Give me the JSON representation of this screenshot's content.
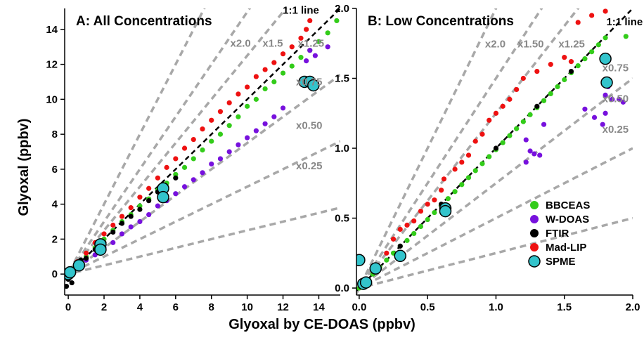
{
  "shared": {
    "ylabel": "Glyoxal (ppbv)",
    "xlabel": "Glyoxal by CE-DOAS (ppbv)"
  },
  "legend": {
    "entries": [
      {
        "name": "BBCEAS",
        "color": "#33cc1a",
        "marker": "dot"
      },
      {
        "name": "W-DOAS",
        "color": "#7711dd",
        "marker": "dot"
      },
      {
        "name": "FTIR",
        "color": "#000000",
        "marker": "dot"
      },
      {
        "name": "Mad-LIP",
        "color": "#ee1111",
        "marker": "dot"
      },
      {
        "name": "SPME",
        "color": "#33c4cc",
        "marker": "circle"
      }
    ]
  },
  "chart_data": [
    {
      "type": "scatter",
      "title": "A: All Concentrations",
      "xlim": [
        -0.2,
        15.2
      ],
      "ylim": [
        -1.2,
        15.2
      ],
      "xticks": [
        "0",
        "2",
        "4",
        "6",
        "8",
        "10",
        "12",
        "14"
      ],
      "yticks": [
        "0",
        "2",
        "4",
        "6",
        "8",
        "10",
        "12",
        "14"
      ],
      "xtick_values": [
        0,
        2,
        4,
        6,
        8,
        10,
        12,
        14
      ],
      "ytick_values": [
        0,
        2,
        4,
        6,
        8,
        10,
        12,
        14
      ],
      "grid": false,
      "ratio_lines": [
        {
          "slope": 2.0,
          "label": "x2.0",
          "label_at": [
            10.2,
            13.0
          ]
        },
        {
          "slope": 1.5,
          "label": "x1.5",
          "label_at": [
            12.0,
            13.0
          ]
        },
        {
          "slope": 1.25,
          "label": "x1.25",
          "label_at": [
            14.3,
            13.0
          ]
        },
        {
          "slope": 0.75,
          "label": "x0.75",
          "label_at": [
            14.2,
            10.8
          ]
        },
        {
          "slope": 0.5,
          "label": "x0.50",
          "label_at": [
            14.2,
            8.3
          ]
        },
        {
          "slope": 0.25,
          "label": "x0.25",
          "label_at": [
            14.2,
            6.0
          ]
        }
      ],
      "one_to_one": {
        "label": "1:1 line",
        "label_at": [
          13.0,
          14.9
        ]
      },
      "series": [
        {
          "name": "BBCEAS",
          "points": [
            [
              0,
              0
            ],
            [
              0.3,
              0.3
            ],
            [
              0.6,
              0.6
            ],
            [
              1,
              1
            ],
            [
              1.5,
              1.5
            ],
            [
              2,
              2
            ],
            [
              2.5,
              2.5
            ],
            [
              3,
              3
            ],
            [
              3.5,
              3.4
            ],
            [
              4,
              3.9
            ],
            [
              4.5,
              4.3
            ],
            [
              5,
              4.8
            ],
            [
              5.5,
              5.2
            ],
            [
              6,
              5.7
            ],
            [
              6.5,
              6.1
            ],
            [
              7,
              6.6
            ],
            [
              7.5,
              7.1
            ],
            [
              8,
              7.6
            ],
            [
              8.5,
              8
            ],
            [
              9,
              8.5
            ],
            [
              9.5,
              9
            ],
            [
              10,
              9.6
            ],
            [
              10.5,
              10
            ],
            [
              11,
              10.6
            ],
            [
              11.5,
              11
            ],
            [
              12,
              11.5
            ],
            [
              12.5,
              11.9
            ],
            [
              13,
              12.4
            ],
            [
              13.5,
              12.8
            ],
            [
              14,
              13.3
            ],
            [
              14.5,
              13.8
            ],
            [
              15,
              14.5
            ]
          ]
        },
        {
          "name": "W-DOAS",
          "points": [
            [
              0.5,
              0.4
            ],
            [
              1,
              0.8
            ],
            [
              1.5,
              1.1
            ],
            [
              2,
              1.5
            ],
            [
              2.5,
              1.8
            ],
            [
              3,
              2.3
            ],
            [
              3.5,
              2.7
            ],
            [
              4,
              3
            ],
            [
              4.5,
              3.4
            ],
            [
              5,
              3.9
            ],
            [
              5.5,
              4.2
            ],
            [
              6,
              4.6
            ],
            [
              6.5,
              5
            ],
            [
              7,
              5.4
            ],
            [
              7.5,
              5.8
            ],
            [
              8,
              6.3
            ],
            [
              8.5,
              6.6
            ],
            [
              9,
              7
            ],
            [
              9.5,
              7.4
            ],
            [
              10,
              7.8
            ],
            [
              10.5,
              8.2
            ],
            [
              11,
              8.6
            ],
            [
              11.5,
              9
            ],
            [
              12,
              9.5
            ],
            [
              13.3,
              12.2
            ],
            [
              13.5,
              12.8
            ],
            [
              13.8,
              12.5
            ],
            [
              14.5,
              13
            ]
          ]
        },
        {
          "name": "FTIR",
          "points": [
            [
              -0.1,
              -0.7
            ],
            [
              0,
              -0.3
            ],
            [
              0.1,
              0.1
            ],
            [
              0.2,
              -0.5
            ],
            [
              0.4,
              0.5
            ],
            [
              0.7,
              0.8
            ],
            [
              1,
              0.9
            ],
            [
              1.5,
              1.4
            ],
            [
              2,
              1.8
            ],
            [
              2.5,
              2.4
            ],
            [
              3,
              2.9
            ],
            [
              3.5,
              3.3
            ],
            [
              4,
              3.7
            ],
            [
              4.5,
              4.2
            ],
            [
              5,
              4.7
            ],
            [
              5.3,
              5
            ],
            [
              6,
              5.5
            ]
          ]
        },
        {
          "name": "Mad-LIP",
          "points": [
            [
              0.5,
              0.7
            ],
            [
              1,
              1.2
            ],
            [
              1.5,
              1.8
            ],
            [
              2,
              2.3
            ],
            [
              2.5,
              2.8
            ],
            [
              3,
              3.3
            ],
            [
              3.5,
              3.8
            ],
            [
              4,
              4.4
            ],
            [
              4.5,
              4.9
            ],
            [
              5,
              5.5
            ],
            [
              5.5,
              6.1
            ],
            [
              6,
              6.6
            ],
            [
              6.5,
              7.2
            ],
            [
              7,
              7.7
            ],
            [
              7.5,
              8.3
            ],
            [
              8,
              8.8
            ],
            [
              8.5,
              9.3
            ],
            [
              9,
              9.8
            ],
            [
              9.5,
              10.3
            ],
            [
              10,
              10.7
            ],
            [
              10.5,
              11.3
            ],
            [
              11,
              11.7
            ],
            [
              11.5,
              12.1
            ],
            [
              12,
              12.6
            ],
            [
              12.5,
              13
            ],
            [
              13,
              13.5
            ],
            [
              13.3,
              14
            ],
            [
              13.5,
              14.5
            ]
          ]
        },
        {
          "name": "SPME",
          "points": [
            [
              0,
              0
            ],
            [
              0.1,
              0.1
            ],
            [
              0.6,
              0.5
            ],
            [
              1.8,
              1.7
            ],
            [
              1.8,
              1.4
            ],
            [
              5.3,
              4.9
            ],
            [
              5.3,
              4.4
            ],
            [
              13.2,
              11
            ],
            [
              13.5,
              11
            ],
            [
              13.7,
              10.8
            ]
          ]
        }
      ]
    },
    {
      "type": "scatter",
      "title": "B: Low Concentrations",
      "xlim": [
        -0.02,
        2.0
      ],
      "ylim": [
        -0.05,
        2.0
      ],
      "xticks": [
        "0.0",
        "0.5",
        "1.0",
        "1.5",
        "2.0"
      ],
      "yticks": [
        "0.0",
        "0.5",
        "1.0",
        "1.5",
        "2.0"
      ],
      "xtick_values": [
        0,
        0.5,
        1.0,
        1.5,
        2.0
      ],
      "ytick_values": [
        0,
        0.5,
        1.0,
        1.5,
        2.0
      ],
      "grid": false,
      "ratio_lines": [
        {
          "slope": 2.0,
          "label": "x2.0",
          "label_at": [
            1.07,
            1.72
          ]
        },
        {
          "slope": 1.5,
          "label": "x1.50",
          "label_at": [
            1.35,
            1.72
          ]
        },
        {
          "slope": 1.25,
          "label": "x1.25",
          "label_at": [
            1.65,
            1.72
          ]
        },
        {
          "slope": 0.75,
          "label": "x0.75",
          "label_at": [
            1.97,
            1.55
          ]
        },
        {
          "slope": 0.5,
          "label": "x0.50",
          "label_at": [
            1.97,
            1.33
          ]
        },
        {
          "slope": 0.25,
          "label": "x0.25",
          "label_at": [
            1.97,
            1.11
          ]
        }
      ],
      "one_to_one": {
        "label": "1:1 line",
        "label_at": [
          1.94,
          1.88
        ]
      },
      "series": [
        {
          "name": "BBCEAS",
          "points": [
            [
              0,
              0
            ],
            [
              0.02,
              0.02
            ],
            [
              0.05,
              0.04
            ],
            [
              0.1,
              0.1
            ],
            [
              0.15,
              0.15
            ],
            [
              0.2,
              0.2
            ],
            [
              0.25,
              0.25
            ],
            [
              0.3,
              0.3
            ],
            [
              0.35,
              0.34
            ],
            [
              0.4,
              0.39
            ],
            [
              0.45,
              0.44
            ],
            [
              0.5,
              0.49
            ],
            [
              0.55,
              0.54
            ],
            [
              0.6,
              0.59
            ],
            [
              0.65,
              0.64
            ],
            [
              0.7,
              0.69
            ],
            [
              0.75,
              0.74
            ],
            [
              0.8,
              0.79
            ],
            [
              0.85,
              0.84
            ],
            [
              0.9,
              0.89
            ],
            [
              0.95,
              0.94
            ],
            [
              1.0,
              0.99
            ],
            [
              1.05,
              1.04
            ],
            [
              1.1,
              1.09
            ],
            [
              1.15,
              1.14
            ],
            [
              1.2,
              1.19
            ],
            [
              1.25,
              1.24
            ],
            [
              1.3,
              1.29
            ],
            [
              1.35,
              1.34
            ],
            [
              1.4,
              1.39
            ],
            [
              1.45,
              1.44
            ],
            [
              1.5,
              1.49
            ],
            [
              1.55,
              1.54
            ],
            [
              1.6,
              1.59
            ],
            [
              1.65,
              1.64
            ],
            [
              1.7,
              1.69
            ],
            [
              1.75,
              1.74
            ],
            [
              1.8,
              1.79
            ],
            [
              1.95,
              1.8
            ]
          ]
        },
        {
          "name": "W-DOAS",
          "points": [
            [
              1.22,
              1.06
            ],
            [
              1.22,
              0.9
            ],
            [
              1.25,
              0.98
            ],
            [
              1.28,
              0.96
            ],
            [
              1.32,
              0.95
            ],
            [
              1.35,
              1.17
            ],
            [
              1.65,
              1.28
            ],
            [
              1.72,
              1.22
            ],
            [
              1.78,
              1.17
            ],
            [
              1.8,
              1.25
            ],
            [
              1.8,
              1.38
            ],
            [
              1.82,
              1.44
            ],
            [
              1.85,
              1.35
            ],
            [
              1.9,
              1.35
            ],
            [
              1.93,
              1.33
            ]
          ]
        },
        {
          "name": "FTIR",
          "points": [
            [
              0.3,
              0.3
            ],
            [
              0.6,
              0.6
            ],
            [
              1.0,
              1.0
            ],
            [
              1.3,
              1.3
            ],
            [
              1.55,
              1.55
            ]
          ]
        },
        {
          "name": "Mad-LIP",
          "points": [
            [
              0.2,
              0.25
            ],
            [
              0.25,
              0.35
            ],
            [
              0.3,
              0.42
            ],
            [
              0.35,
              0.45
            ],
            [
              0.4,
              0.48
            ],
            [
              0.45,
              0.55
            ],
            [
              0.5,
              0.6
            ],
            [
              0.55,
              0.63
            ],
            [
              0.6,
              0.7
            ],
            [
              0.62,
              0.78
            ],
            [
              0.7,
              0.85
            ],
            [
              0.75,
              0.9
            ],
            [
              0.8,
              0.95
            ],
            [
              0.85,
              1.05
            ],
            [
              0.9,
              1.1
            ],
            [
              0.95,
              1.2
            ],
            [
              1.0,
              1.25
            ],
            [
              1.05,
              1.3
            ],
            [
              1.1,
              1.35
            ],
            [
              1.15,
              1.42
            ],
            [
              1.2,
              1.5
            ],
            [
              1.3,
              1.55
            ],
            [
              1.4,
              1.6
            ],
            [
              1.5,
              1.65
            ],
            [
              1.55,
              1.62
            ],
            [
              1.6,
              1.9
            ],
            [
              1.7,
              1.95
            ],
            [
              1.8,
              1.98
            ]
          ]
        },
        {
          "name": "SPME",
          "points": [
            [
              0.0,
              0.2
            ],
            [
              0.03,
              0.03
            ],
            [
              0.05,
              0.04
            ],
            [
              0.12,
              0.14
            ],
            [
              0.3,
              0.23
            ],
            [
              0.63,
              0.57
            ],
            [
              0.63,
              0.55
            ],
            [
              1.8,
              1.64
            ],
            [
              1.81,
              1.47
            ]
          ]
        }
      ]
    }
  ]
}
